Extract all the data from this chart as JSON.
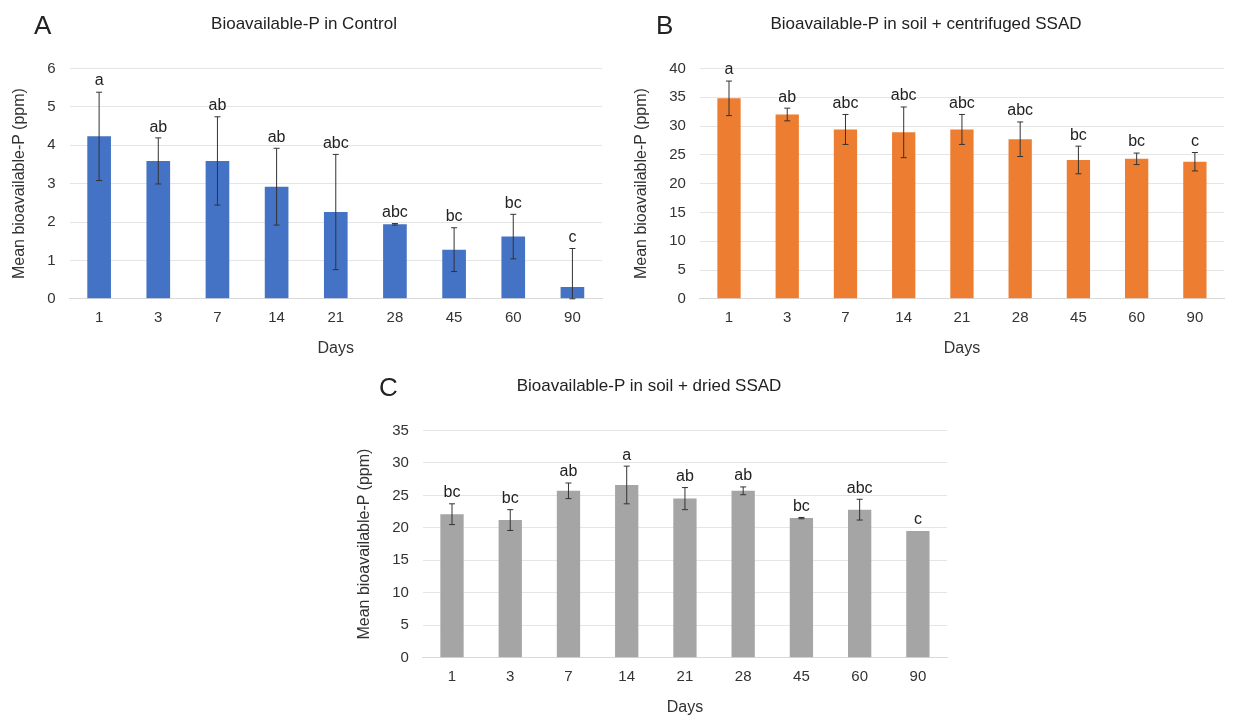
{
  "chart_data": [
    {
      "type": "bar",
      "title": "Bioavailable-P in Control",
      "xlabel": "Days",
      "ylabel": "Mean bioavailable-P (ppm)",
      "categories": [
        "1",
        "3",
        "7",
        "14",
        "21",
        "28",
        "45",
        "60",
        "90"
      ],
      "values": [
        4.23,
        3.59,
        3.59,
        2.92,
        2.26,
        1.94,
        1.28,
        1.62,
        0.31
      ],
      "color": "#4472c4",
      "errors": [
        1.15,
        0.6,
        1.15,
        1.0,
        1.5,
        0.02,
        0.57,
        0.58,
        [
          0,
          1.31
        ]
      ],
      "ylim": [
        0,
        6
      ],
      "yticks": [
        0,
        1,
        2,
        3,
        4,
        5,
        6
      ],
      "grid": "y",
      "annotations": [
        "A",
        {
          "text": "a",
          "x": "1",
          "y": 5.39
        },
        {
          "text": "ab",
          "x": "3",
          "y": 4.18
        },
        {
          "text": "ab",
          "x": "7",
          "y": 4.74
        },
        {
          "text": "ab",
          "x": "14",
          "y": 3.92
        },
        {
          "text": "abc",
          "x": "21",
          "y": 3.76
        },
        {
          "text": "abc",
          "x": "28",
          "y": 1.96
        },
        {
          "text": "bc",
          "x": "45",
          "y": 1.85
        },
        {
          "text": "bc",
          "x": "60",
          "y": 2.2
        },
        {
          "text": "c",
          "x": "90",
          "y": 1.31
        }
      ]
    },
    {
      "type": "bar",
      "title": "Bioavailable-P in soil + centrifuged SSAD",
      "xlabel": "Days",
      "ylabel": "Mean bioavailable-P (ppm)",
      "categories": [
        "1",
        "3",
        "7",
        "14",
        "21",
        "28",
        "45",
        "60",
        "90"
      ],
      "values": [
        34.8,
        32.0,
        29.4,
        28.9,
        29.4,
        27.7,
        24.1,
        24.3,
        23.8
      ],
      "color": "#ed7d31",
      "errors": [
        3.0,
        1.1,
        2.6,
        4.4,
        2.6,
        3.0,
        2.4,
        1.0,
        1.6
      ],
      "ylim": [
        0,
        40
      ],
      "yticks": [
        0,
        5,
        10,
        15,
        20,
        25,
        30,
        35,
        40
      ],
      "grid": "y",
      "annotations": [
        "B",
        {
          "text": "a",
          "x": "1",
          "y": 37.8
        },
        {
          "text": "ab",
          "x": "3",
          "y": 33.1
        },
        {
          "text": "abc",
          "x": "7",
          "y": 32.0
        },
        {
          "text": "abc",
          "x": "14",
          "y": 33.3
        },
        {
          "text": "abc",
          "x": "21",
          "y": 32.0
        },
        {
          "text": "abc",
          "x": "28",
          "y": 30.7
        },
        {
          "text": "bc",
          "x": "45",
          "y": 26.5
        },
        {
          "text": "bc",
          "x": "60",
          "y": 25.3
        },
        {
          "text": "c",
          "x": "90",
          "y": 25.4
        }
      ]
    },
    {
      "type": "bar",
      "title": "Bioavailable-P in soil + dried SSAD",
      "xlabel": "Days",
      "ylabel": "Mean bioavailable-P (ppm)",
      "categories": [
        "1",
        "3",
        "7",
        "14",
        "21",
        "28",
        "45",
        "60",
        "90"
      ],
      "values": [
        22.1,
        21.2,
        25.7,
        26.6,
        24.5,
        25.7,
        21.5,
        22.8,
        19.5
      ],
      "color": "#a5a5a5",
      "errors": [
        1.6,
        1.6,
        1.2,
        2.9,
        1.7,
        0.6,
        0.1,
        1.6,
        null
      ],
      "ylim": [
        0,
        35
      ],
      "yticks": [
        0,
        5,
        10,
        15,
        20,
        25,
        30,
        35
      ],
      "grid": "y",
      "annotations": [
        "C",
        {
          "text": "bc",
          "x": "1",
          "y": 23.7
        },
        {
          "text": "bc",
          "x": "3",
          "y": 22.8
        },
        {
          "text": "ab",
          "x": "7",
          "y": 26.9
        },
        {
          "text": "a",
          "x": "14",
          "y": 29.5
        },
        {
          "text": "ab",
          "x": "21",
          "y": 26.2
        },
        {
          "text": "ab",
          "x": "28",
          "y": 26.3
        },
        {
          "text": "bc",
          "x": "45",
          "y": 21.6
        },
        {
          "text": "abc",
          "x": "60",
          "y": 24.4
        },
        {
          "text": "c",
          "x": "90",
          "y": 19.6
        }
      ]
    }
  ]
}
